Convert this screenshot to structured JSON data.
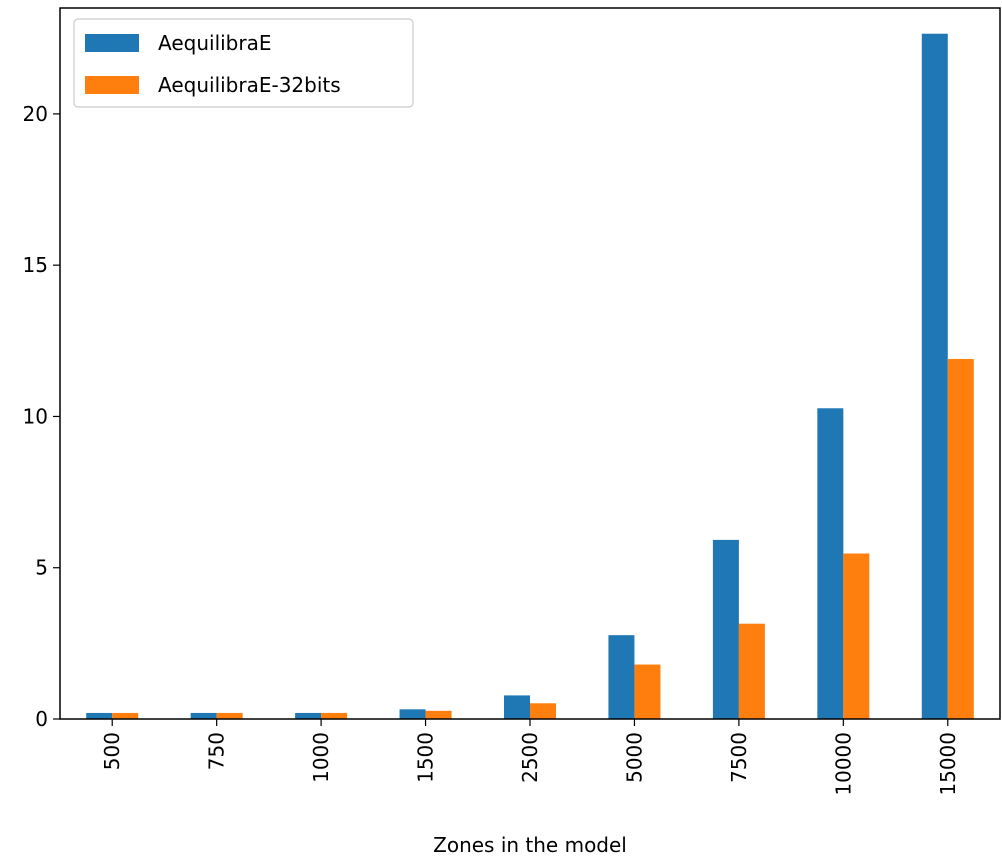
{
  "chart_data": {
    "type": "bar",
    "title": "",
    "xlabel": "Zones in the model",
    "ylabel": "",
    "categories": [
      "500",
      "750",
      "1000",
      "1500",
      "2500",
      "5000",
      "7500",
      "10000",
      "15000"
    ],
    "series": [
      {
        "name": "AequilibraE",
        "color": "#1f77b4",
        "values": [
          0.2,
          0.2,
          0.2,
          0.32,
          0.78,
          2.77,
          5.92,
          10.27,
          22.65
        ]
      },
      {
        "name": "AequilibraE-32bits",
        "color": "#ff7f0e",
        "values": [
          0.2,
          0.2,
          0.2,
          0.27,
          0.52,
          1.8,
          3.15,
          5.47,
          11.9
        ]
      }
    ],
    "ylim": [
      0,
      23.5
    ],
    "yticks": [
      "0",
      "5",
      "10",
      "15",
      "20"
    ],
    "grid": false,
    "legend": "top-left",
    "xtick_rotation": 90
  }
}
